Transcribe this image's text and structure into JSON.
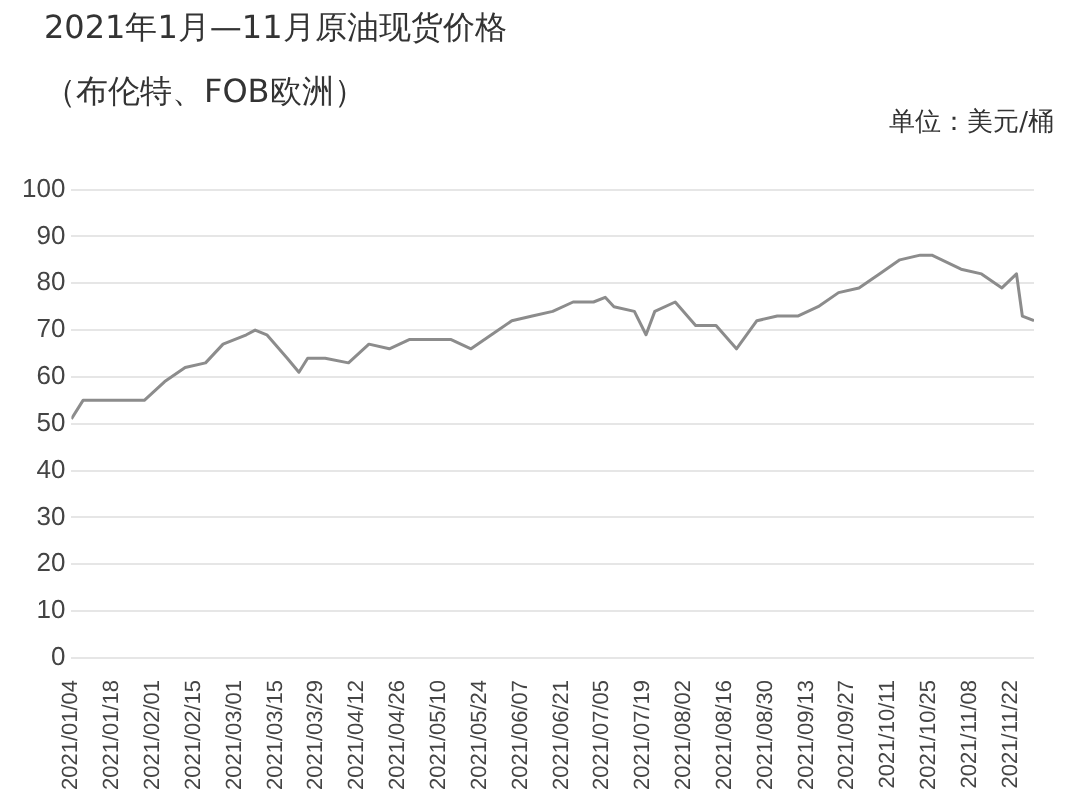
{
  "chart_data": {
    "type": "line",
    "title": "2021年1月—11月原油现货价格",
    "subtitle": "（布伦特、FOB欧洲）",
    "ylabel": "单位：美元/桶",
    "x": [
      "2021-01-04",
      "2021-01-08",
      "2021-01-15",
      "2021-01-22",
      "2021-01-29",
      "2021-02-05",
      "2021-02-12",
      "2021-02-19",
      "2021-02-25",
      "2021-03-05",
      "2021-03-08",
      "2021-03-12",
      "2021-03-19",
      "2021-03-23",
      "2021-03-26",
      "2021-04-01",
      "2021-04-09",
      "2021-04-16",
      "2021-04-23",
      "2021-04-30",
      "2021-05-07",
      "2021-05-14",
      "2021-05-21",
      "2021-05-28",
      "2021-06-04",
      "2021-06-11",
      "2021-06-18",
      "2021-06-25",
      "2021-07-02",
      "2021-07-06",
      "2021-07-09",
      "2021-07-16",
      "2021-07-20",
      "2021-07-23",
      "2021-07-30",
      "2021-08-06",
      "2021-08-13",
      "2021-08-20",
      "2021-08-27",
      "2021-09-03",
      "2021-09-10",
      "2021-09-17",
      "2021-09-24",
      "2021-10-01",
      "2021-10-08",
      "2021-10-15",
      "2021-10-22",
      "2021-10-26",
      "2021-11-05",
      "2021-11-12",
      "2021-11-19",
      "2021-11-24",
      "2021-11-26",
      "2021-11-30"
    ],
    "series": [
      {
        "color": "#8c8c8c",
        "values": [
          51,
          55,
          55,
          55,
          55,
          59,
          62,
          63,
          67,
          69,
          70,
          69,
          64,
          61,
          64,
          64,
          63,
          67,
          66,
          68,
          68,
          68,
          66,
          69,
          72,
          73,
          74,
          76,
          76,
          77,
          75,
          74,
          69,
          74,
          76,
          71,
          71,
          66,
          72,
          73,
          73,
          75,
          78,
          79,
          82,
          85,
          86,
          86,
          83,
          82,
          79,
          82,
          73,
          72
        ]
      }
    ],
    "xlim": [
      "2021-01-04",
      "2021-11-30"
    ],
    "xticks": [
      {
        "value": "2021-01-04",
        "label": "2021/01/04"
      },
      {
        "value": "2021-01-18",
        "label": "2021/01/18"
      },
      {
        "value": "2021-02-01",
        "label": "2021/02/01"
      },
      {
        "value": "2021-02-15",
        "label": "2021/02/15"
      },
      {
        "value": "2021-03-01",
        "label": "2021/03/01"
      },
      {
        "value": "2021-03-15",
        "label": "2021/03/15"
      },
      {
        "value": "2021-03-29",
        "label": "2021/03/29"
      },
      {
        "value": "2021-04-12",
        "label": "2021/04/12"
      },
      {
        "value": "2021-04-26",
        "label": "2021/04/26"
      },
      {
        "value": "2021-05-10",
        "label": "2021/05/10"
      },
      {
        "value": "2021-05-24",
        "label": "2021/05/24"
      },
      {
        "value": "2021-06-07",
        "label": "2021/06/07"
      },
      {
        "value": "2021-06-21",
        "label": "2021/06/21"
      },
      {
        "value": "2021-07-05",
        "label": "2021/07/05"
      },
      {
        "value": "2021-07-19",
        "label": "2021/07/19"
      },
      {
        "value": "2021-08-02",
        "label": "2021/08/02"
      },
      {
        "value": "2021-08-16",
        "label": "2021/08/16"
      },
      {
        "value": "2021-08-30",
        "label": "2021/08/30"
      },
      {
        "value": "2021-09-13",
        "label": "2021/09/13"
      },
      {
        "value": "2021-09-27",
        "label": "2021/09/27"
      },
      {
        "value": "2021-10-11",
        "label": "2021/10/11"
      },
      {
        "value": "2021-10-25",
        "label": "2021/10/25"
      },
      {
        "value": "2021-11-08",
        "label": "2021/11/08"
      },
      {
        "value": "2021-11-22",
        "label": "2021/11/22"
      }
    ],
    "ylim": [
      0,
      100
    ],
    "yticks": [
      0,
      10,
      20,
      30,
      40,
      50,
      60,
      70,
      80,
      90,
      100
    ],
    "grid": "y",
    "legend": false,
    "marker": "none",
    "line_style": "solid"
  }
}
